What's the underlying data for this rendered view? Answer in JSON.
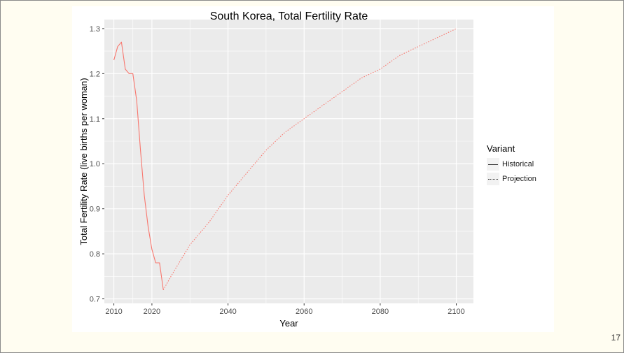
{
  "page_number": "17",
  "colors": {
    "line": "#f8766d",
    "panel": "#ebebeb",
    "grid": "#ffffff"
  },
  "chart_data": {
    "type": "line",
    "title": "South Korea, Total Fertility Rate",
    "xlabel": "Year",
    "ylabel": "Total Fertility Rate (live births per woman)",
    "xlim": [
      2007.5,
      2104.5
    ],
    "ylim": [
      0.69,
      1.32
    ],
    "x_ticks": [
      2010,
      2020,
      2040,
      2060,
      2080,
      2100
    ],
    "y_ticks": [
      0.7,
      0.8,
      0.9,
      1.0,
      1.1,
      1.2,
      1.3
    ],
    "x_tick_labels": [
      "2010",
      "2020",
      "2040",
      "2060",
      "2080",
      "2100"
    ],
    "y_tick_labels": [
      "0.7",
      "0.8",
      "0.9",
      "1.0",
      "1.1",
      "1.2",
      "1.3"
    ],
    "grid": true,
    "legend": {
      "title": "Variant",
      "position": "right",
      "entries": [
        "Historical",
        "Projection"
      ]
    },
    "series": [
      {
        "name": "Historical",
        "linestyle": "solid",
        "x": [
          2010,
          2011,
          2012,
          2013,
          2014,
          2015,
          2016,
          2017,
          2018,
          2019,
          2020,
          2021,
          2022,
          2023
        ],
        "y": [
          1.23,
          1.26,
          1.27,
          1.21,
          1.2,
          1.2,
          1.14,
          1.03,
          0.93,
          0.86,
          0.81,
          0.78,
          0.78,
          0.72
        ]
      },
      {
        "name": "Projection",
        "linestyle": "dotted",
        "x": [
          2023,
          2025,
          2030,
          2035,
          2040,
          2045,
          2050,
          2055,
          2060,
          2065,
          2070,
          2075,
          2080,
          2085,
          2090,
          2095,
          2100
        ],
        "y": [
          0.72,
          0.75,
          0.82,
          0.87,
          0.93,
          0.98,
          1.03,
          1.07,
          1.1,
          1.13,
          1.16,
          1.19,
          1.21,
          1.24,
          1.26,
          1.28,
          1.3
        ]
      }
    ]
  }
}
